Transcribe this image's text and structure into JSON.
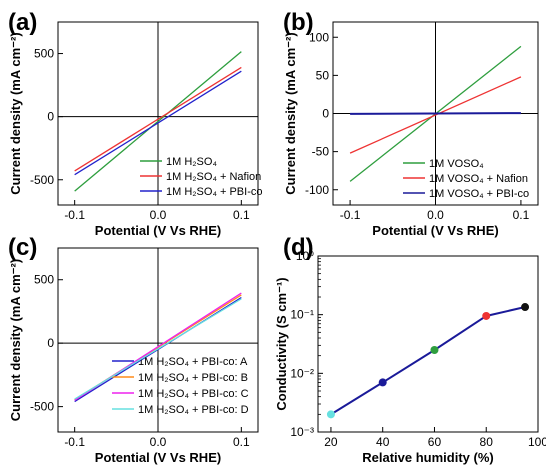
{
  "chart_data": [
    {
      "id": "a",
      "panel_label": "(a)",
      "type": "line",
      "xlabel": "Potential (V Vs RHE)",
      "ylabel": "Current density (mA cm⁻²)",
      "xlim": [
        -0.12,
        0.12
      ],
      "ylim": [
        -700,
        750
      ],
      "xticks": [
        {
          "v": -0.1,
          "label": "-0.1"
        },
        {
          "v": 0.0,
          "label": "0.0"
        },
        {
          "v": 0.1,
          "label": "0.1"
        }
      ],
      "yticks": [
        {
          "v": -500,
          "label": "-500"
        },
        {
          "v": 0,
          "label": "0"
        },
        {
          "v": 500,
          "label": "500"
        }
      ],
      "series": [
        {
          "name": "1M H₂SO₄",
          "color": "#2e9e3e",
          "x": [
            -0.1,
            0.1
          ],
          "values": [
            -590,
            515
          ]
        },
        {
          "name": "1M H₂SO₄ + Nafion",
          "color": "#ee3333",
          "x": [
            -0.1,
            0.1
          ],
          "values": [
            -430,
            390
          ]
        },
        {
          "name": "1M H₂SO₄ + PBI-co",
          "color": "#2222cc",
          "x": [
            -0.1,
            0.1
          ],
          "values": [
            -460,
            360
          ]
        }
      ],
      "legend_position": "bottom-right"
    },
    {
      "id": "b",
      "panel_label": "(b)",
      "type": "line",
      "xlabel": "Potential (V Vs RHE)",
      "ylabel": "Current density (mA cm⁻²)",
      "xlim": [
        -0.12,
        0.12
      ],
      "ylim": [
        -120,
        120
      ],
      "xticks": [
        {
          "v": -0.1,
          "label": "-0.1"
        },
        {
          "v": 0.0,
          "label": "0.0"
        },
        {
          "v": 0.1,
          "label": "0.1"
        }
      ],
      "yticks": [
        {
          "v": -100,
          "label": "-100"
        },
        {
          "v": -50,
          "label": "-50"
        },
        {
          "v": 0,
          "label": "0"
        },
        {
          "v": 50,
          "label": "50"
        },
        {
          "v": 100,
          "label": "100"
        }
      ],
      "series": [
        {
          "name": "1M VOSO₄",
          "color": "#2e9e3e",
          "x": [
            -0.1,
            0.1
          ],
          "values": [
            -89,
            88
          ]
        },
        {
          "name": "1M VOSO₄ + Nafion",
          "color": "#ee3333",
          "x": [
            -0.1,
            0.1
          ],
          "values": [
            -52,
            48
          ]
        },
        {
          "name": "1M VOSO₄ + PBI-co",
          "color": "#1a1a99",
          "x": [
            -0.1,
            0.1
          ],
          "values": [
            -0.5,
            0.5
          ]
        }
      ],
      "legend_position": "bottom-right"
    },
    {
      "id": "c",
      "panel_label": "(c)",
      "type": "line",
      "xlabel": "Potential (V Vs RHE)",
      "ylabel": "Current density (mA cm⁻²)",
      "xlim": [
        -0.12,
        0.12
      ],
      "ylim": [
        -700,
        750
      ],
      "xticks": [
        {
          "v": -0.1,
          "label": "-0.1"
        },
        {
          "v": 0.0,
          "label": "0.0"
        },
        {
          "v": 0.1,
          "label": "0.1"
        }
      ],
      "yticks": [
        {
          "v": -500,
          "label": "-500"
        },
        {
          "v": 0,
          "label": "0"
        },
        {
          "v": 500,
          "label": "500"
        }
      ],
      "series": [
        {
          "name": "1M H₂SO₄ + PBI-co: A",
          "color": "#2222cc",
          "x": [
            -0.1,
            0.1
          ],
          "values": [
            -460,
            360
          ]
        },
        {
          "name": "1M H₂SO₄ + PBI-co: B",
          "color": "#ff8c1a",
          "x": [
            -0.1,
            0.1
          ],
          "values": [
            -445,
            380
          ]
        },
        {
          "name": "1M H₂SO₄ + PBI-co: C",
          "color": "#ee22ee",
          "x": [
            -0.1,
            0.1
          ],
          "values": [
            -450,
            395
          ]
        },
        {
          "name": "1M H₂SO₄ + PBI-co: D",
          "color": "#66e0e0",
          "x": [
            -0.1,
            0.1
          ],
          "values": [
            -440,
            350
          ]
        }
      ],
      "legend_position": "bottom-right"
    },
    {
      "id": "d",
      "panel_label": "(d)",
      "type": "scatter",
      "xlabel": "Relative humidity (%)",
      "ylabel": "Conductivity (S cm⁻¹)",
      "xlim": [
        15,
        100
      ],
      "ylim": [
        0.001,
        1
      ],
      "yscale": "log",
      "xticks": [
        {
          "v": 20,
          "label": "20"
        },
        {
          "v": 40,
          "label": "40"
        },
        {
          "v": 60,
          "label": "60"
        },
        {
          "v": 80,
          "label": "80"
        },
        {
          "v": 100,
          "label": "100"
        }
      ],
      "yticks": [
        {
          "v": 0.001,
          "label": "10⁻³"
        },
        {
          "v": 0.01,
          "label": "10⁻²"
        },
        {
          "v": 0.1,
          "label": "10⁻¹"
        },
        {
          "v": 1,
          "label": "10⁰"
        }
      ],
      "line_color": "#1a1a99",
      "points": [
        {
          "x": 20,
          "y": 0.002,
          "color": "#66e0e0"
        },
        {
          "x": 40,
          "y": 0.007,
          "color": "#1a1a99"
        },
        {
          "x": 60,
          "y": 0.025,
          "color": "#2e9e3e"
        },
        {
          "x": 80,
          "y": 0.095,
          "color": "#ee3333"
        },
        {
          "x": 95,
          "y": 0.135,
          "color": "#111111"
        }
      ]
    }
  ]
}
